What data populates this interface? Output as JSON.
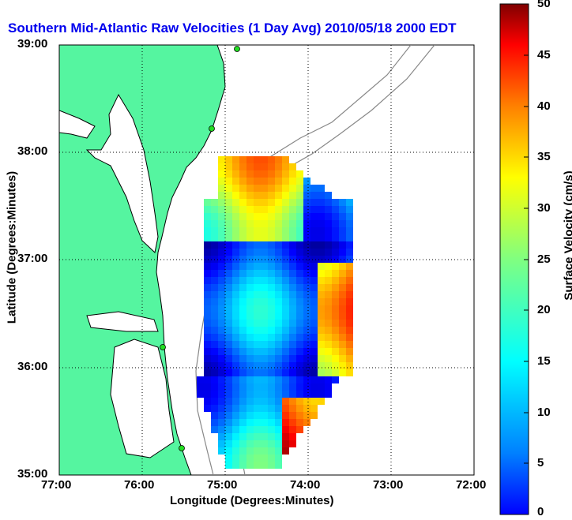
{
  "title": "Southern Mid-Atlantic Raw Velocities (1 Day Avg) 2010/05/18 2000 EDT",
  "xlabel": "Longitude (Degrees:Minutes)",
  "ylabel": "Latitude (Degrees:Minutes)",
  "lon_ticks": [
    "77:00",
    "76:00",
    "75:00",
    "74:00",
    "73:00",
    "72:00"
  ],
  "lat_ticks": [
    "39:00",
    "38:00",
    "37:00",
    "36:00",
    "35:00"
  ],
  "colorbar": {
    "label": "Surface Velocity (cm/s)",
    "ticks": [
      "50",
      "45",
      "40",
      "35",
      "30",
      "25",
      "20",
      "15",
      "10",
      "5",
      "0"
    ],
    "range": [
      0,
      50
    ],
    "colormap": "jet"
  },
  "colors": {
    "land": "#55f5a0",
    "title": "#0000ee",
    "coast": "#000000",
    "bathymetry": "#888888",
    "station": "#22dd22"
  },
  "map_extent": {
    "lon": [
      -77,
      -72
    ],
    "lat": [
      35,
      39
    ]
  }
}
